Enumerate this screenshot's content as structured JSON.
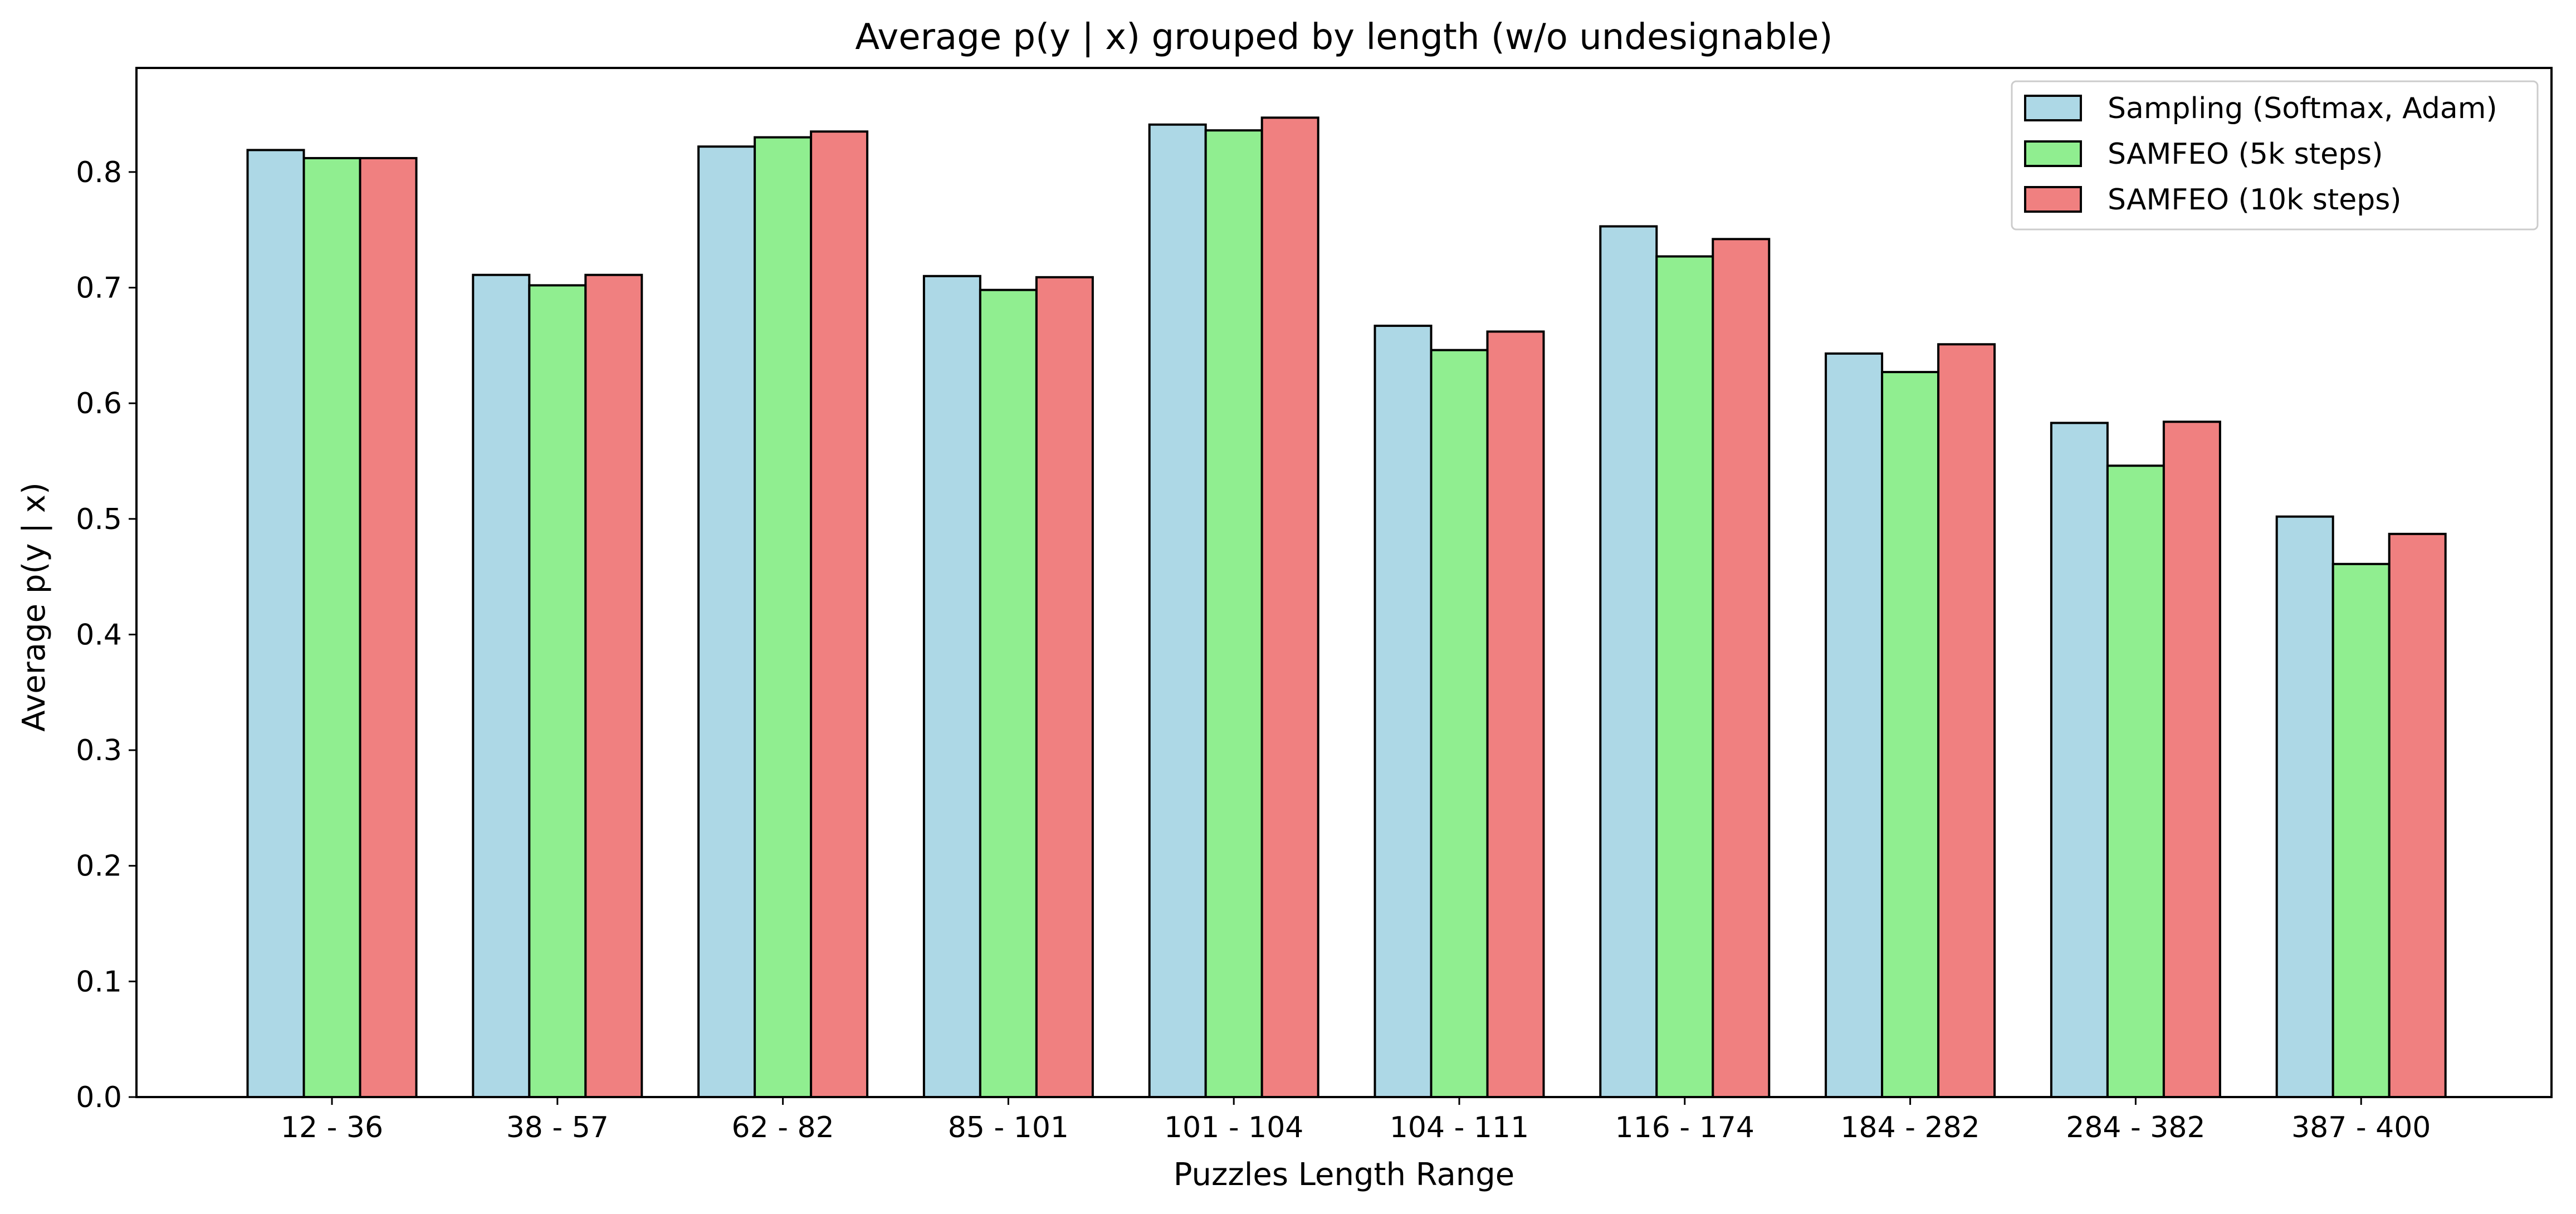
{
  "chart_data": {
    "type": "bar",
    "title": "Average p(y | x) grouped by length (w/o undesignable)",
    "xlabel": "Puzzles Length Range",
    "ylabel": "Average p(y | x)",
    "ylim": [
      0,
      0.89
    ],
    "yticks": [
      "0.0",
      "0.1",
      "0.2",
      "0.3",
      "0.4",
      "0.5",
      "0.6",
      "0.7",
      "0.8"
    ],
    "grid": false,
    "legend_position": "top-right",
    "categories": [
      "12 - 36",
      "38 - 57",
      "62 - 82",
      "85 - 101",
      "101 - 104",
      "104 - 111",
      "116 - 174",
      "184 - 282",
      "284 - 382",
      "387 - 400"
    ],
    "series": [
      {
        "name": "Sampling (Softmax, Adam)",
        "color": "#add8e6",
        "values": [
          0.819,
          0.711,
          0.822,
          0.71,
          0.841,
          0.667,
          0.753,
          0.643,
          0.583,
          0.502
        ]
      },
      {
        "name": "SAMFEO (5k steps)",
        "color": "#90ee90",
        "values": [
          0.812,
          0.702,
          0.83,
          0.698,
          0.836,
          0.646,
          0.727,
          0.627,
          0.546,
          0.461
        ]
      },
      {
        "name": "SAMFEO (10k steps)",
        "color": "#f08080",
        "values": [
          0.812,
          0.711,
          0.835,
          0.709,
          0.847,
          0.662,
          0.742,
          0.651,
          0.584,
          0.487
        ]
      }
    ]
  }
}
